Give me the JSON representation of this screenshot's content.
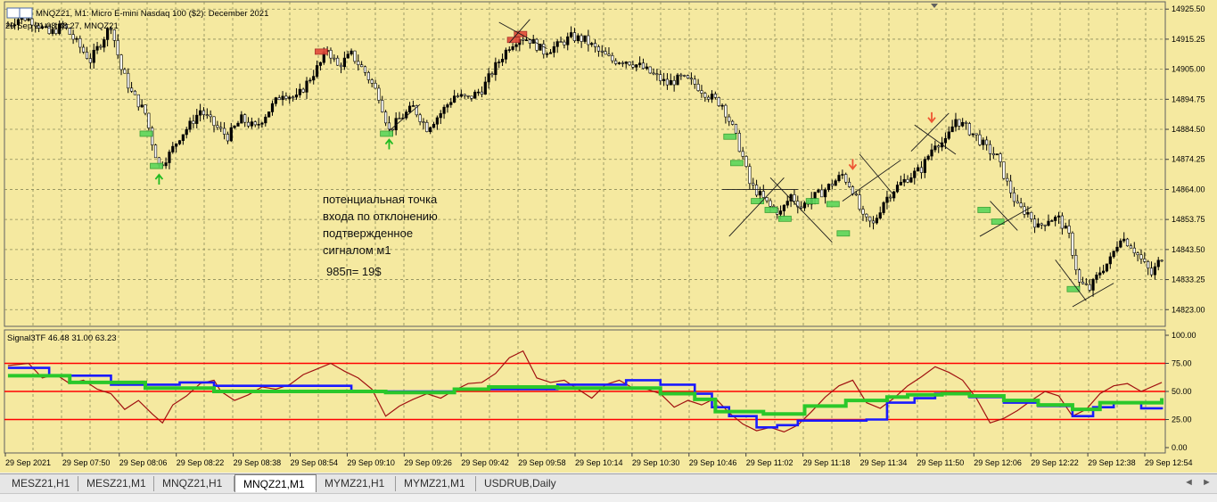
{
  "chart_data": [
    {
      "type": "candlestick",
      "title": "MNQZ21, M1:  Micro E-mini Nasdaq 100 ($2): December 2021",
      "subtitle": "29 Sep 21 08:48:27, MNQZ21",
      "y_ticks": [
        "14925.50",
        "14915.25",
        "14905.00",
        "14894.75",
        "14884.50",
        "14874.25",
        "14864.00",
        "14853.75",
        "14843.50",
        "14833.25",
        "14823.00"
      ],
      "ylim": [
        14817.3,
        14928.0
      ],
      "x_ticks": [
        "29 Sep 2021",
        "29 Sep 07:50",
        "29 Sep 08:06",
        "29 Sep 08:22",
        "29 Sep 08:38",
        "29 Sep 08:54",
        "29 Sep 09:10",
        "29 Sep 09:26",
        "29 Sep 09:42",
        "29 Sep 09:58",
        "29 Sep 10:14",
        "29 Sep 10:30",
        "29 Sep 10:46",
        "29 Sep 11:02",
        "29 Sep 11:18",
        "29 Sep 11:34",
        "29 Sep 11:50",
        "29 Sep 12:06",
        "29 Sep 12:22",
        "29 Sep 12:38",
        "29 Sep 12:54"
      ],
      "close_path": [
        [
          0,
          14920
        ],
        [
          4,
          14923
        ],
        [
          8,
          14921
        ],
        [
          12,
          14917
        ],
        [
          16,
          14920
        ],
        [
          20,
          14914
        ],
        [
          24,
          14908
        ],
        [
          28,
          14916
        ],
        [
          30,
          14920
        ],
        [
          33,
          14905
        ],
        [
          36,
          14897
        ],
        [
          40,
          14890
        ],
        [
          42,
          14880
        ],
        [
          44,
          14872
        ],
        [
          47,
          14876
        ],
        [
          50,
          14882
        ],
        [
          53,
          14886
        ],
        [
          56,
          14891
        ],
        [
          60,
          14886
        ],
        [
          64,
          14882
        ],
        [
          68,
          14888
        ],
        [
          72,
          14885
        ],
        [
          76,
          14891
        ],
        [
          80,
          14897
        ],
        [
          84,
          14895
        ],
        [
          88,
          14902
        ],
        [
          91,
          14907
        ],
        [
          93,
          14912
        ],
        [
          96,
          14906
        ],
        [
          100,
          14910
        ],
        [
          104,
          14904
        ],
        [
          108,
          14896
        ],
        [
          111,
          14884
        ],
        [
          114,
          14888
        ],
        [
          118,
          14892
        ],
        [
          122,
          14885
        ],
        [
          126,
          14890
        ],
        [
          130,
          14896
        ],
        [
          134,
          14895
        ],
        [
          138,
          14898
        ],
        [
          142,
          14906
        ],
        [
          146,
          14913
        ],
        [
          149,
          14916
        ],
        [
          152,
          14915
        ],
        [
          156,
          14911
        ],
        [
          160,
          14913
        ],
        [
          164,
          14916
        ],
        [
          168,
          14915
        ],
        [
          172,
          14911
        ],
        [
          176,
          14908
        ],
        [
          180,
          14908
        ],
        [
          184,
          14906
        ],
        [
          188,
          14903
        ],
        [
          192,
          14900
        ],
        [
          196,
          14902
        ],
        [
          200,
          14900
        ],
        [
          204,
          14896
        ],
        [
          208,
          14893
        ],
        [
          211,
          14885
        ],
        [
          214,
          14875
        ],
        [
          216,
          14866
        ],
        [
          219,
          14862
        ],
        [
          222,
          14858
        ],
        [
          225,
          14856
        ],
        [
          228,
          14862
        ],
        [
          231,
          14858
        ],
        [
          234,
          14861
        ],
        [
          237,
          14863
        ],
        [
          240,
          14866
        ],
        [
          243,
          14869
        ],
        [
          246,
          14864
        ],
        [
          249,
          14854
        ],
        [
          252,
          14852
        ],
        [
          255,
          14860
        ],
        [
          258,
          14864
        ],
        [
          262,
          14868
        ],
        [
          266,
          14871
        ],
        [
          270,
          14880
        ],
        [
          273,
          14880
        ],
        [
          276,
          14888
        ],
        [
          279,
          14885
        ],
        [
          282,
          14882
        ],
        [
          285,
          14878
        ],
        [
          288,
          14875
        ],
        [
          291,
          14866
        ],
        [
          294,
          14858
        ],
        [
          297,
          14856
        ],
        [
          300,
          14851
        ],
        [
          303,
          14854
        ],
        [
          306,
          14854
        ],
        [
          309,
          14848
        ],
        [
          312,
          14832
        ],
        [
          315,
          14830
        ],
        [
          318,
          14836
        ],
        [
          321,
          14840
        ],
        [
          324,
          14848
        ],
        [
          327,
          14845
        ],
        [
          330,
          14840
        ],
        [
          333,
          14835
        ],
        [
          336,
          14841
        ]
      ],
      "markers": {
        "up_arrows": [
          [
            44,
            14869
          ],
          [
            111,
            14881
          ]
        ],
        "down_arrows": [
          [
            246,
            14871
          ],
          [
            269,
            14887
          ]
        ],
        "green_boxes": [
          [
            40,
            14883
          ],
          [
            43,
            14872
          ],
          [
            110,
            14883
          ],
          [
            210,
            14882
          ],
          [
            212,
            14873
          ],
          [
            218,
            14860
          ],
          [
            222,
            14857
          ],
          [
            226,
            14854
          ],
          [
            234,
            14860
          ],
          [
            240,
            14859
          ],
          [
            243,
            14849
          ],
          [
            284,
            14857
          ],
          [
            288,
            14853
          ],
          [
            310,
            14830
          ]
        ],
        "red_boxes": [
          [
            91,
            14911
          ],
          [
            147,
            14915
          ],
          [
            149,
            14917
          ]
        ]
      },
      "annotation_lines": [
        "потенциальная точка",
        "входа по отклонению",
        "подтвержденное",
        "сигналом м1"
      ],
      "annotation_value": "985п= 19$"
    },
    {
      "type": "line",
      "title": "Signal3TF 46.48 31.00 63.23",
      "y_ticks": [
        "100.00",
        "75.00",
        "50.00",
        "25.00",
        "0.00"
      ],
      "ylim": [
        0,
        100
      ],
      "levels": [
        75,
        50,
        25
      ],
      "series": [
        {
          "color": "#a01010",
          "points": [
            [
              0,
              73
            ],
            [
              6,
              75
            ],
            [
              10,
              62
            ],
            [
              14,
              65
            ],
            [
              18,
              57
            ],
            [
              22,
              60
            ],
            [
              26,
              52
            ],
            [
              30,
              48
            ],
            [
              34,
              34
            ],
            [
              38,
              42
            ],
            [
              42,
              30
            ],
            [
              45,
              22
            ],
            [
              48,
              38
            ],
            [
              52,
              46
            ],
            [
              56,
              57
            ],
            [
              60,
              60
            ],
            [
              62,
              50
            ],
            [
              66,
              42
            ],
            [
              70,
              47
            ],
            [
              74,
              54
            ],
            [
              78,
              52
            ],
            [
              82,
              56
            ],
            [
              86,
              65
            ],
            [
              90,
              70
            ],
            [
              94,
              75
            ],
            [
              98,
              68
            ],
            [
              102,
              62
            ],
            [
              106,
              52
            ],
            [
              110,
              28
            ],
            [
              114,
              37
            ],
            [
              118,
              43
            ],
            [
              122,
              48
            ],
            [
              126,
              44
            ],
            [
              130,
              51
            ],
            [
              134,
              57
            ],
            [
              138,
              58
            ],
            [
              142,
              66
            ],
            [
              146,
              80
            ],
            [
              150,
              86
            ],
            [
              154,
              62
            ],
            [
              158,
              58
            ],
            [
              162,
              60
            ],
            [
              166,
              52
            ],
            [
              170,
              44
            ],
            [
              174,
              56
            ],
            [
              178,
              60
            ],
            [
              182,
              53
            ],
            [
              186,
              52
            ],
            [
              190,
              48
            ],
            [
              194,
              36
            ],
            [
              198,
              42
            ],
            [
              202,
              38
            ],
            [
              206,
              44
            ],
            [
              210,
              31
            ],
            [
              214,
              21
            ],
            [
              218,
              15
            ],
            [
              222,
              18
            ],
            [
              226,
              14
            ],
            [
              230,
              20
            ],
            [
              234,
              32
            ],
            [
              238,
              45
            ],
            [
              242,
              55
            ],
            [
              246,
              60
            ],
            [
              250,
              40
            ],
            [
              254,
              35
            ],
            [
              258,
              44
            ],
            [
              262,
              55
            ],
            [
              266,
              63
            ],
            [
              270,
              72
            ],
            [
              274,
              67
            ],
            [
              278,
              60
            ],
            [
              282,
              44
            ],
            [
              286,
              22
            ],
            [
              290,
              26
            ],
            [
              294,
              33
            ],
            [
              298,
              42
            ],
            [
              302,
              50
            ],
            [
              306,
              46
            ],
            [
              310,
              28
            ],
            [
              314,
              34
            ],
            [
              318,
              48
            ],
            [
              322,
              55
            ],
            [
              326,
              57
            ],
            [
              330,
              50
            ],
            [
              336,
              58
            ]
          ]
        },
        {
          "color": "#1a1aff",
          "points": [
            [
              0,
              71
            ],
            [
              12,
              64
            ],
            [
              30,
              56
            ],
            [
              50,
              58
            ],
            [
              60,
              55
            ],
            [
              100,
              50
            ],
            [
              130,
              52
            ],
            [
              160,
              56
            ],
            [
              180,
              60
            ],
            [
              190,
              56
            ],
            [
              200,
              48
            ],
            [
              205,
              36
            ],
            [
              210,
              28
            ],
            [
              218,
              18
            ],
            [
              224,
              20
            ],
            [
              230,
              24
            ],
            [
              250,
              25
            ],
            [
              256,
              40
            ],
            [
              264,
              44
            ],
            [
              270,
              48
            ],
            [
              280,
              45
            ],
            [
              290,
              40
            ],
            [
              300,
              37
            ],
            [
              310,
              28
            ],
            [
              316,
              36
            ],
            [
              322,
              40
            ],
            [
              330,
              35
            ],
            [
              336,
              34
            ]
          ]
        },
        {
          "color": "#2ac82a",
          "points": [
            [
              0,
              64
            ],
            [
              18,
              58
            ],
            [
              40,
              53
            ],
            [
              60,
              50
            ],
            [
              80,
              50
            ],
            [
              110,
              49
            ],
            [
              130,
              52
            ],
            [
              140,
              54
            ],
            [
              160,
              53
            ],
            [
              190,
              48
            ],
            [
              200,
              43
            ],
            [
              206,
              32
            ],
            [
              220,
              30
            ],
            [
              232,
              37
            ],
            [
              244,
              42
            ],
            [
              256,
              45
            ],
            [
              262,
              47
            ],
            [
              272,
              48
            ],
            [
              280,
              46
            ],
            [
              290,
              42
            ],
            [
              300,
              38
            ],
            [
              310,
              34
            ],
            [
              318,
              40
            ],
            [
              336,
              44
            ]
          ]
        }
      ]
    }
  ],
  "tabs": [
    "MESZ21,H1",
    "MESZ21,M1",
    "MNQZ21,H1",
    "MNQZ21,M1",
    "MYMZ21,H1",
    "MYMZ21,M1",
    "USDRUB,Daily"
  ],
  "active_tab": "MNQZ21,M1",
  "tab_nav": {
    "left": "◄",
    "right": "►"
  },
  "colors": {
    "chart_bg": "#f5e9a0",
    "grid": "#8a8a5a",
    "up_candle": "#000000",
    "signal_box_green": "#5bd65b",
    "signal_box_red": "#e34b3a",
    "level_line": "#ff0000"
  }
}
